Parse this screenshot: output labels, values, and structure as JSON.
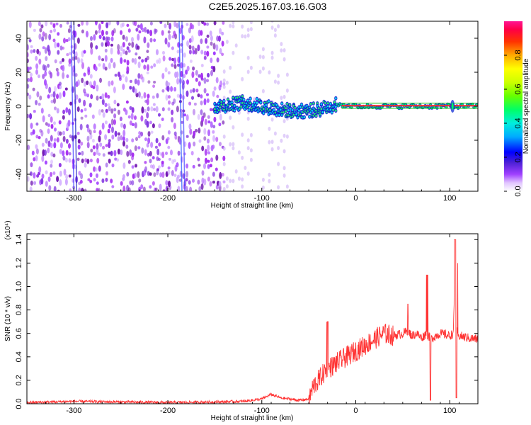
{
  "title": "C2E5.2025.167.03.16.G03",
  "chart_data": [
    {
      "type": "heatmap",
      "xlabel": "Height of straight line (km)",
      "ylabel": "Frequency (Hz)",
      "xlim": [
        -350,
        130
      ],
      "ylim": [
        -50,
        50
      ],
      "xticks": [
        -300,
        -200,
        -100,
        0,
        100
      ],
      "yticks": [
        -40,
        -20,
        0,
        20,
        40
      ],
      "colorbar": {
        "label": "Normalized spectral amplitude",
        "range": [
          0.0,
          1.0
        ],
        "ticks": [
          "0.0",
          "0.2",
          "0.4",
          "0.6",
          "0.8"
        ],
        "colors": [
          "#ffffff",
          "#d8b4f8",
          "#9b30ff",
          "#3a1fd6",
          "#0000ff",
          "#00aaff",
          "#00e5ee",
          "#00ff66",
          "#66ff00",
          "#ccff00",
          "#ffff00",
          "#ffaa00",
          "#ff3300",
          "#ff0044",
          "#ff1493"
        ]
      },
      "description_series": [
        {
          "name": "noise_region",
          "x_range": [
            -350,
            -140
          ],
          "freq_range": [
            -50,
            50
          ]
        },
        {
          "name": "signal_trace",
          "x": [
            -150,
            -120,
            -100,
            -80,
            -60,
            -40,
            -20,
            0,
            50,
            100,
            130
          ],
          "freq": [
            0,
            2,
            0,
            -2,
            -3,
            -2,
            1,
            0,
            0,
            0,
            0
          ]
        }
      ]
    },
    {
      "type": "line",
      "xlabel": "Height of straight line (km)",
      "ylabel": "SNR (10 * v/v)",
      "y_multiplier": "(x10⁴)",
      "xlim": [
        -350,
        130
      ],
      "ylim": [
        0,
        1.45
      ],
      "xticks": [
        -300,
        -200,
        -100,
        0,
        100
      ],
      "yticks": [
        "0.0",
        "0.2",
        "0.4",
        "0.6",
        "0.8",
        "1.0",
        "1.2",
        "1.4"
      ],
      "series": [
        {
          "color": "#ff3333",
          "x": [
            -350,
            -300,
            -250,
            -200,
            -150,
            -120,
            -100,
            -90,
            -80,
            -60,
            -50,
            -45,
            -40,
            -35,
            -30,
            -25,
            -20,
            -10,
            0,
            10,
            20,
            30,
            40,
            50,
            55,
            60,
            65,
            70,
            75,
            80,
            85,
            90,
            100,
            104,
            106,
            108,
            110,
            120,
            130
          ],
          "y": [
            0.01,
            0.02,
            0.015,
            0.01,
            0.015,
            0.02,
            0.04,
            0.08,
            0.05,
            0.03,
            0.04,
            0.15,
            0.2,
            0.25,
            0.3,
            0.32,
            0.35,
            0.4,
            0.45,
            0.5,
            0.55,
            0.6,
            0.58,
            0.6,
            0.62,
            0.58,
            0.6,
            0.56,
            0.6,
            0.55,
            0.58,
            0.6,
            0.58,
            0.6,
            1.4,
            0.56,
            0.58,
            0.56,
            0.55
          ]
        }
      ]
    }
  ]
}
